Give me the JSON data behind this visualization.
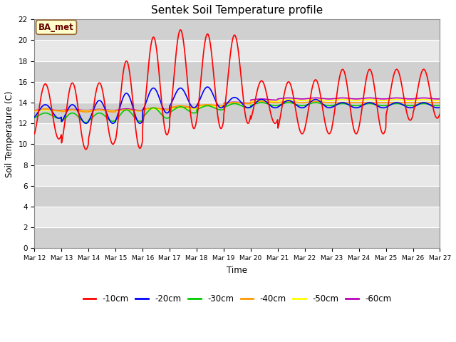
{
  "title": "Sentek Soil Temperature profile",
  "xlabel": "Time",
  "ylabel": "Soil Temperature (C)",
  "annotation": "BA_met",
  "ylim": [
    0,
    22
  ],
  "yticks": [
    0,
    2,
    4,
    6,
    8,
    10,
    12,
    14,
    16,
    18,
    20,
    22
  ],
  "x_labels": [
    "Mar 12",
    "Mar 13",
    "Mar 14",
    "Mar 15",
    "Mar 16",
    "Mar 17",
    "Mar 18",
    "Mar 19",
    "Mar 20",
    "Mar 21",
    "Mar 22",
    "Mar 23",
    "Mar 24",
    "Mar 25",
    "Mar 26",
    "Mar 27"
  ],
  "legend_labels": [
    "-10cm",
    "-20cm",
    "-30cm",
    "-40cm",
    "-50cm",
    "-60cm"
  ],
  "legend_colors": [
    "#ff0000",
    "#0000ff",
    "#00cc00",
    "#ff9900",
    "#ffff00",
    "#bb00bb"
  ],
  "fig_bg_color": "#ffffff",
  "plot_bg_light": "#e8e8e8",
  "plot_bg_dark": "#d0d0d0",
  "title_fontsize": 11,
  "n_days": 15,
  "x10_peaks": [
    15.8,
    10.5,
    15.9,
    9.5,
    15.9,
    10.0,
    18.0,
    9.6,
    20.3,
    10.9,
    21.0,
    11.5,
    20.6,
    11.5,
    20.5,
    12.0,
    16.1,
    12.0,
    16.0,
    11.0,
    16.2,
    11.0,
    17.2,
    11.0,
    17.2,
    11.0,
    17.2,
    12.3,
    17.2,
    12.5
  ],
  "x20_peaks": [
    13.8,
    12.5,
    13.8,
    12.0,
    14.2,
    12.0,
    14.9,
    12.0,
    15.4,
    13.0,
    15.4,
    13.5,
    15.5,
    13.5,
    14.5,
    13.5,
    14.3,
    13.5,
    14.2,
    13.5,
    14.3,
    13.5,
    14.0,
    13.5,
    14.0,
    13.5,
    14.0,
    13.5,
    14.0,
    13.5
  ],
  "x30_peaks": [
    13.0,
    12.5,
    13.0,
    12.1,
    13.0,
    12.2,
    13.3,
    12.2,
    13.5,
    12.5,
    13.6,
    13.0,
    13.7,
    13.3,
    13.9,
    13.5,
    14.0,
    13.7,
    14.0,
    13.7,
    14.0,
    13.7,
    13.9,
    13.7,
    13.9,
    13.7,
    13.9,
    13.7,
    13.9,
    13.7
  ],
  "x40_peaks": [
    13.4,
    13.2,
    13.3,
    13.1,
    13.3,
    13.1,
    13.3,
    13.2,
    13.5,
    13.3,
    13.7,
    13.5,
    13.8,
    13.7,
    14.0,
    13.9,
    14.1,
    14.0,
    14.1,
    14.0,
    14.1,
    14.0,
    14.0,
    14.0,
    14.0,
    14.0,
    14.0,
    14.0,
    14.0,
    14.0
  ],
  "x50_peaks": [
    13.3,
    13.2,
    13.3,
    13.2,
    13.3,
    13.2,
    13.3,
    13.2,
    13.4,
    13.3,
    13.5,
    13.4,
    13.7,
    13.6,
    14.0,
    13.9,
    14.2,
    14.1,
    14.3,
    14.2,
    14.3,
    14.2,
    14.3,
    14.2,
    14.3,
    14.2,
    14.3,
    14.2,
    14.3,
    14.2
  ],
  "x60_peaks": [
    13.35,
    13.25,
    13.35,
    13.25,
    13.35,
    13.25,
    13.4,
    13.25,
    13.45,
    13.35,
    13.55,
    13.45,
    13.75,
    13.65,
    14.05,
    13.95,
    14.35,
    14.25,
    14.45,
    14.35,
    14.45,
    14.35,
    14.45,
    14.35,
    14.45,
    14.35,
    14.45,
    14.35,
    14.45,
    14.35
  ]
}
